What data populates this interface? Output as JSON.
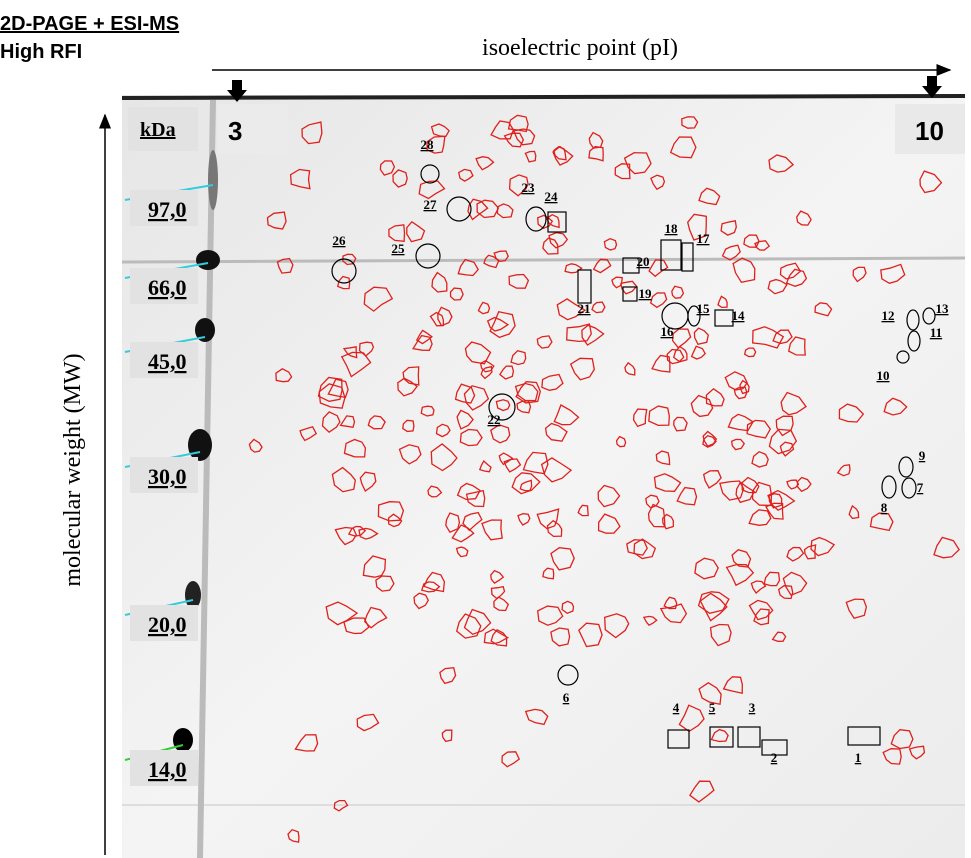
{
  "header": {
    "title": "2D-PAGE + ESI-MS",
    "subtitle": "High RFI"
  },
  "axes": {
    "x_label": "isoelectric point (pI)",
    "y_label": "molecular weight (MW)",
    "unit": "kDa",
    "pi_start": "3",
    "pi_end": "10"
  },
  "mw_markers": [
    "97,0",
    "66,0",
    "45,0",
    "30,0",
    "20,0",
    "14,0"
  ],
  "spots": [
    "1",
    "2",
    "3",
    "4",
    "5",
    "6",
    "7",
    "8",
    "9",
    "10",
    "11",
    "12",
    "13",
    "14",
    "15",
    "16",
    "17",
    "18",
    "19",
    "20",
    "21",
    "22",
    "23",
    "24",
    "25",
    "26",
    "27",
    "28"
  ]
}
